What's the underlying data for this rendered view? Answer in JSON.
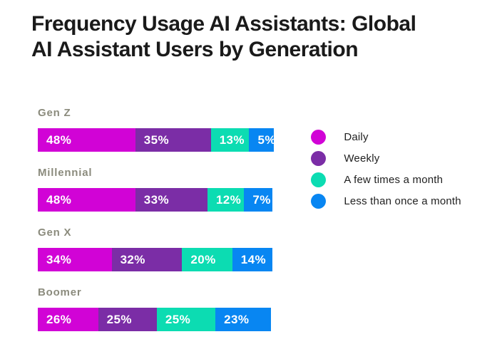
{
  "title": {
    "line1": "Frequency Usage AI Assistants: Global",
    "line2": "AI Assistant Users by Generation"
  },
  "colors": {
    "background": "#FFFFFF",
    "title_text": "#1A1A1A",
    "category_label": "#8B8B7D",
    "value_text": "#FFFFFF",
    "daily": "#D103D6",
    "weekly": "#7B2DA6",
    "few_times_a_month": "#0CDCB2",
    "less_than_once_a_month": "#0886F2"
  },
  "legend": {
    "position": "right",
    "items": [
      {
        "label": "Daily",
        "color": "#D103D6"
      },
      {
        "label": "Weekly",
        "color": "#7B2DA6"
      },
      {
        "label": "A few times a month",
        "color": "#0CDCB2"
      },
      {
        "label": "Less than once a month",
        "color": "#0886F2"
      }
    ]
  },
  "chart_data": {
    "type": "bar",
    "orientation": "horizontal",
    "stacked": true,
    "title": "Frequency Usage AI Assistants: Global AI Assistant Users by Generation",
    "xlabel": "",
    "ylabel": "",
    "grid": false,
    "axes_visible": false,
    "value_suffix": "%",
    "categories": [
      "Gen Z",
      "Millennial",
      "Gen X",
      "Boomer"
    ],
    "series": [
      {
        "name": "Daily",
        "color": "#D103D6",
        "values": [
          48,
          48,
          34,
          26
        ]
      },
      {
        "name": "Weekly",
        "color": "#7B2DA6",
        "values": [
          35,
          33,
          32,
          25
        ]
      },
      {
        "name": "A few times a month",
        "color": "#0CDCB2",
        "values": [
          13,
          12,
          20,
          25
        ]
      },
      {
        "name": "Less than once a month",
        "color": "#0886F2",
        "values": [
          5,
          7,
          14,
          23
        ]
      }
    ]
  }
}
